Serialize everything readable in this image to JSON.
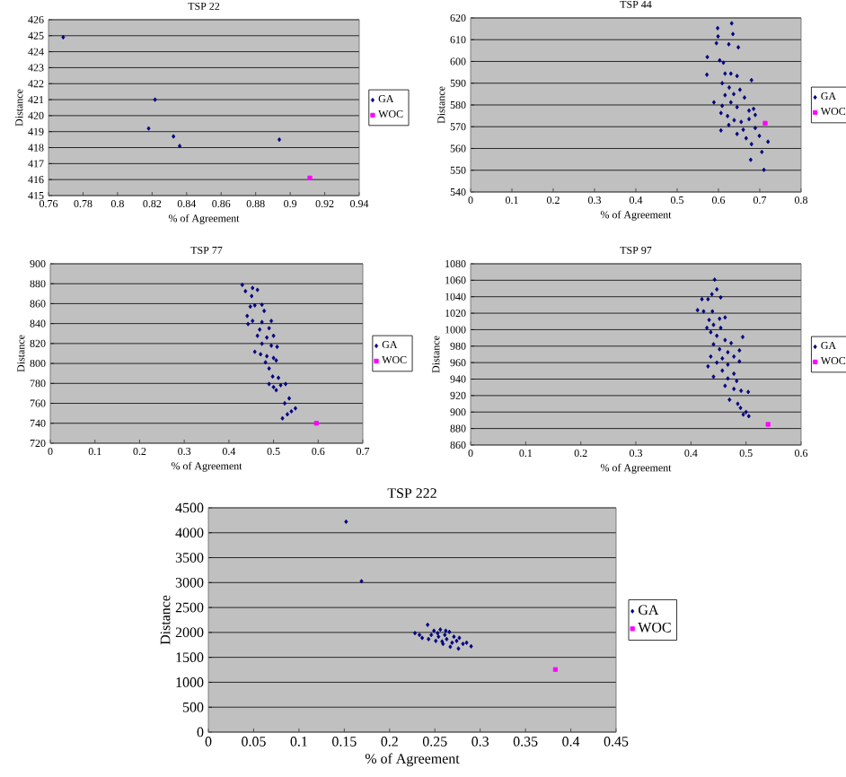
{
  "chart_data": [
    {
      "type": "scatter",
      "title": "TSP 22",
      "xlabel": "% of Agreement",
      "ylabel": "Distance",
      "xlim": [
        0.76,
        0.94
      ],
      "ylim": [
        415,
        426
      ],
      "xticks": [
        0.76,
        0.78,
        0.8,
        0.82,
        0.84,
        0.86,
        0.88,
        0.9,
        0.92,
        0.94
      ],
      "yticks": [
        415,
        416,
        417,
        418,
        419,
        420,
        421,
        422,
        423,
        424,
        425,
        426
      ],
      "grid": "y",
      "legend": "right",
      "series": [
        {
          "name": "GA",
          "color": "#000080",
          "marker": "diamond",
          "x": [
            0.7685,
            0.818,
            0.8217,
            0.8324,
            0.836,
            0.8937
          ],
          "values": [
            424.9,
            419.2,
            421.0,
            418.7,
            418.1,
            418.5
          ]
        },
        {
          "name": "WOC",
          "color": "#ff00ff",
          "marker": "square",
          "x": [
            0.9114
          ],
          "values": [
            416.1
          ]
        }
      ]
    },
    {
      "type": "scatter",
      "title": "TSP 44",
      "xlabel": "% of Agreement",
      "ylabel": "Distance",
      "xlim": [
        0,
        0.8
      ],
      "ylim": [
        540,
        620
      ],
      "xticks": [
        0,
        0.1,
        0.2,
        0.3,
        0.4,
        0.5,
        0.6,
        0.7,
        0.8
      ],
      "yticks": [
        540,
        550,
        560,
        570,
        580,
        590,
        600,
        610,
        620
      ],
      "grid": "y",
      "legend": "right",
      "series": [
        {
          "name": "GA",
          "color": "#000080",
          "marker": "diamond",
          "x": [
            0.598,
            0.632,
            0.599,
            0.635,
            0.595,
            0.625,
            0.648,
            0.573,
            0.603,
            0.612,
            0.572,
            0.616,
            0.63,
            0.645,
            0.68,
            0.609,
            0.626,
            0.652,
            0.616,
            0.637,
            0.589,
            0.63,
            0.663,
            0.609,
            0.645,
            0.685,
            0.606,
            0.674,
            0.622,
            0.689,
            0.638,
            0.655,
            0.674,
            0.625,
            0.606,
            0.66,
            0.689,
            0.645,
            0.667,
            0.699,
            0.68,
            0.72,
            0.705,
            0.678,
            0.71
          ],
          "values": [
            615.3,
            617.5,
            611.5,
            612.6,
            608.4,
            607.9,
            606.5,
            602,
            600.5,
            599.4,
            593.9,
            594.4,
            594.4,
            593.3,
            591.4,
            590,
            588,
            587,
            584.5,
            585,
            581.2,
            581.2,
            583.4,
            579.6,
            579,
            578.2,
            576.3,
            577.4,
            574.9,
            575.4,
            573,
            572.2,
            573.5,
            570.8,
            568.3,
            568.6,
            569.4,
            566.7,
            564.7,
            565.8,
            562,
            563.1,
            558.4,
            554.8,
            550.2
          ]
        },
        {
          "name": "WOC",
          "color": "#ff00ff",
          "marker": "square",
          "x": [
            0.713
          ],
          "values": [
            571.6
          ]
        }
      ]
    },
    {
      "type": "scatter",
      "title": "TSP 77",
      "xlabel": "% of Agreement",
      "ylabel": "Distance",
      "xlim": [
        0,
        0.7
      ],
      "ylim": [
        720,
        900
      ],
      "xticks": [
        0,
        0.1,
        0.2,
        0.3,
        0.4,
        0.5,
        0.6,
        0.7
      ],
      "yticks": [
        720,
        740,
        760,
        780,
        800,
        820,
        840,
        860,
        880,
        900
      ],
      "grid": "y",
      "legend": "right",
      "series": [
        {
          "name": "GA",
          "color": "#000080",
          "marker": "diamond",
          "x": [
            0.43,
            0.437,
            0.453,
            0.464,
            0.451,
            0.448,
            0.458,
            0.474,
            0.479,
            0.441,
            0.453,
            0.474,
            0.495,
            0.443,
            0.469,
            0.49,
            0.464,
            0.485,
            0.5,
            0.474,
            0.495,
            0.508,
            0.458,
            0.471,
            0.485,
            0.5,
            0.482,
            0.506,
            0.49,
            0.498,
            0.511,
            0.49,
            0.5,
            0.516,
            0.527,
            0.506,
            0.52,
            0.531,
            0.54,
            0.549,
            0.525,
            0.535
          ],
          "values": [
            878.8,
            872.5,
            875.7,
            873.8,
            867.6,
            857,
            858.3,
            858.9,
            852.7,
            847.7,
            842.7,
            841.5,
            842.7,
            839.6,
            834,
            835.3,
            827.8,
            826,
            827.8,
            819.8,
            817.9,
            816.7,
            811.7,
            809.2,
            807.3,
            805.5,
            801.1,
            803,
            794.9,
            786.9,
            785.6,
            779.4,
            776.3,
            778.2,
            779.4,
            773.2,
            745,
            749,
            752,
            755,
            760,
            765
          ]
        },
        {
          "name": "WOC",
          "color": "#ff00ff",
          "marker": "square",
          "x": [
            0.596
          ],
          "values": [
            740
          ]
        }
      ]
    },
    {
      "type": "scatter",
      "title": "TSP 97",
      "xlabel": "% of Agreement",
      "ylabel": "Distance",
      "xlim": [
        0,
        0.6
      ],
      "ylim": [
        860,
        1080
      ],
      "xticks": [
        0,
        0.1,
        0.2,
        0.3,
        0.4,
        0.5,
        0.6
      ],
      "yticks": [
        860,
        880,
        900,
        920,
        940,
        960,
        980,
        1000,
        1020,
        1040,
        1060,
        1080
      ],
      "grid": "y",
      "legend": "right",
      "series": [
        {
          "name": "GA",
          "color": "#000080",
          "marker": "diamond",
          "x": [
            0.443,
            0.447,
            0.438,
            0.454,
            0.42,
            0.431,
            0.412,
            0.423,
            0.439,
            0.452,
            0.433,
            0.462,
            0.441,
            0.429,
            0.454,
            0.436,
            0.447,
            0.494,
            0.462,
            0.441,
            0.473,
            0.452,
            0.467,
            0.488,
            0.436,
            0.457,
            0.478,
            0.447,
            0.467,
            0.488,
            0.431,
            0.457,
            0.478,
            0.441,
            0.467,
            0.483,
            0.462,
            0.478,
            0.491,
            0.504,
            0.47,
            0.485,
            0.49,
            0.5,
            0.505,
            0.495
          ],
          "values": [
            1060.7,
            1048.9,
            1043,
            1039.2,
            1037,
            1037,
            1023.7,
            1022.2,
            1022.2,
            1013.3,
            1011.8,
            1014.8,
            1005.9,
            1002.2,
            1002.2,
            997,
            992.6,
            991.1,
            987.4,
            982.2,
            983.7,
            976.3,
            972.6,
            974.8,
            967.4,
            965.1,
            967.4,
            960,
            957.7,
            961.4,
            955.5,
            950.3,
            946.6,
            942.9,
            940.7,
            937.7,
            931.8,
            928.1,
            925.9,
            924.4,
            915,
            910,
            905,
            900,
            895,
            897
          ]
        },
        {
          "name": "WOC",
          "color": "#ff00ff",
          "marker": "square",
          "x": [
            0.54
          ],
          "values": [
            885
          ]
        }
      ]
    },
    {
      "type": "scatter",
      "title": "TSP 222",
      "xlabel": "% of Agreement",
      "ylabel": "Distance",
      "xlim": [
        0,
        0.45
      ],
      "ylim": [
        0,
        4500
      ],
      "xticks": [
        0,
        0.05,
        0.1,
        0.15,
        0.2,
        0.25,
        0.3,
        0.35,
        0.4,
        0.45
      ],
      "yticks": [
        0,
        500,
        1000,
        1500,
        2000,
        2500,
        3000,
        3500,
        4000,
        4500
      ],
      "grid": "y",
      "legend": "right",
      "series": [
        {
          "name": "GA",
          "color": "#000080",
          "marker": "diamond",
          "x": [
            0.152,
            0.169,
            0.228,
            0.233,
            0.236,
            0.242,
            0.243,
            0.246,
            0.249,
            0.251,
            0.254,
            0.256,
            0.258,
            0.261,
            0.263,
            0.266,
            0.269,
            0.271,
            0.274,
            0.277,
            0.281,
            0.285,
            0.29,
            0.259,
            0.267,
            0.276,
            0.253,
            0.262
          ],
          "values": [
            4222,
            3026,
            1986,
            1950,
            1890,
            2153,
            1866,
            1950,
            2033,
            1830,
            1914,
            2057,
            1818,
            1950,
            1866,
            2010,
            1794,
            1914,
            1830,
            1890,
            1770,
            1794,
            1722,
            1770,
            1711,
            1675,
            1986,
            2033
          ]
        },
        {
          "name": "WOC",
          "color": "#ff00ff",
          "marker": "square",
          "x": [
            0.383
          ],
          "values": [
            1256
          ]
        }
      ]
    }
  ]
}
